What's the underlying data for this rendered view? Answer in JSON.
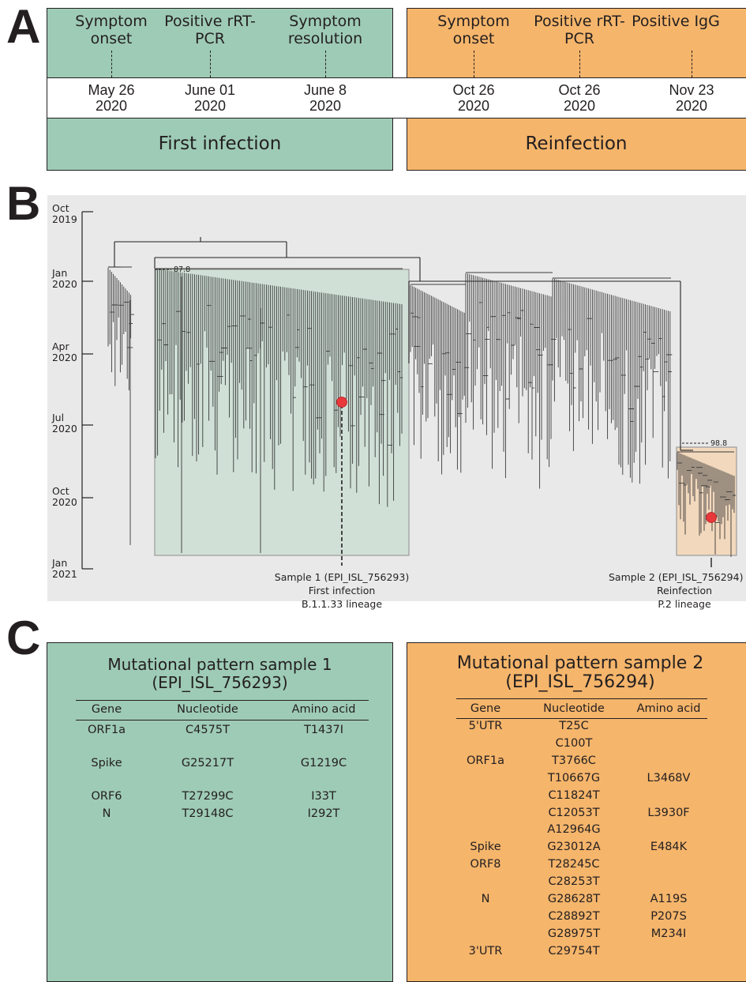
{
  "panel_labels": {
    "a": "A",
    "b": "B",
    "c": "C"
  },
  "colors": {
    "first": "#9ecbb6",
    "reinfection": "#f5b56b",
    "tree_bg": "#e9e9e9",
    "sample_dot": "#e8383b"
  },
  "panel_a": {
    "first_events": [
      {
        "label": "Symptom onset",
        "date": "May 26",
        "year": "2020"
      },
      {
        "label": "Positive rRT-PCR",
        "date": "June 01",
        "year": "2020"
      },
      {
        "label": "Symptom resolution",
        "date": "June 8",
        "year": "2020"
      }
    ],
    "re_events": [
      {
        "label": "Symptom onset",
        "date": "Oct 26",
        "year": "2020"
      },
      {
        "label": "Positive rRT-PCR",
        "date": "Oct 26",
        "year": "2020"
      },
      {
        "label": "Positive IgG",
        "date": "Nov 23",
        "year": "2020"
      }
    ],
    "first_label": "First infection",
    "re_label": "Reinfection"
  },
  "panel_b": {
    "y_ticks": [
      {
        "month": "Oct",
        "year": "2019"
      },
      {
        "month": "Jan",
        "year": "2020"
      },
      {
        "month": "Apr",
        "year": "2020"
      },
      {
        "month": "Jul",
        "year": "2020"
      },
      {
        "month": "Oct",
        "year": "2020"
      },
      {
        "month": "Jan",
        "year": "2021"
      }
    ],
    "support_1": "87.8",
    "support_2": "98.8",
    "sample1": {
      "line1": "Sample 1 (EPI_ISL_756293)",
      "line2": "First infection",
      "line3": "B.1.1.33 lineage"
    },
    "sample2": {
      "line1": "Sample 2 (EPI_ISL_756294)",
      "line2": "Reinfection",
      "line3": "P.2 lineage"
    }
  },
  "panel_c": {
    "headers": {
      "gene": "Gene",
      "nucleotide": "Nucleotide",
      "amino": "Amino acid"
    },
    "s1": {
      "title1": "Mutational pattern sample 1",
      "title2": "(EPI_ISL_756293)",
      "rows": [
        {
          "gene": "ORF1a",
          "nt": "C4575T",
          "aa": "T1437I"
        },
        {
          "gene": "Spike",
          "nt": "G25217T",
          "aa": "G1219C"
        },
        {
          "gene": "ORF6",
          "nt": "T27299C",
          "aa": "I33T"
        },
        {
          "gene": "N",
          "nt": "T29148C",
          "aa": "I292T"
        }
      ]
    },
    "s2": {
      "title1": "Mutational pattern sample 2",
      "title2": "(EPI_ISL_756294)",
      "rows": [
        {
          "gene": "5'UTR",
          "nt": "T25C",
          "aa": ""
        },
        {
          "gene": "",
          "nt": "C100T",
          "aa": ""
        },
        {
          "gene": "ORF1a",
          "nt": "T3766C",
          "aa": ""
        },
        {
          "gene": "",
          "nt": "T10667G",
          "aa": "L3468V"
        },
        {
          "gene": "",
          "nt": "C11824T",
          "aa": ""
        },
        {
          "gene": "",
          "nt": "C12053T",
          "aa": "L3930F"
        },
        {
          "gene": "",
          "nt": "A12964G",
          "aa": ""
        },
        {
          "gene": "Spike",
          "nt": "G23012A",
          "aa": "E484K"
        },
        {
          "gene": "ORF8",
          "nt": "T28245C",
          "aa": ""
        },
        {
          "gene": "",
          "nt": "C28253T",
          "aa": ""
        },
        {
          "gene": "N",
          "nt": "G28628T",
          "aa": "A119S"
        },
        {
          "gene": "",
          "nt": "C28892T",
          "aa": "P207S"
        },
        {
          "gene": "",
          "nt": "G28975T",
          "aa": "M234I"
        },
        {
          "gene": "3'UTR",
          "nt": "C29754T",
          "aa": ""
        }
      ]
    }
  }
}
